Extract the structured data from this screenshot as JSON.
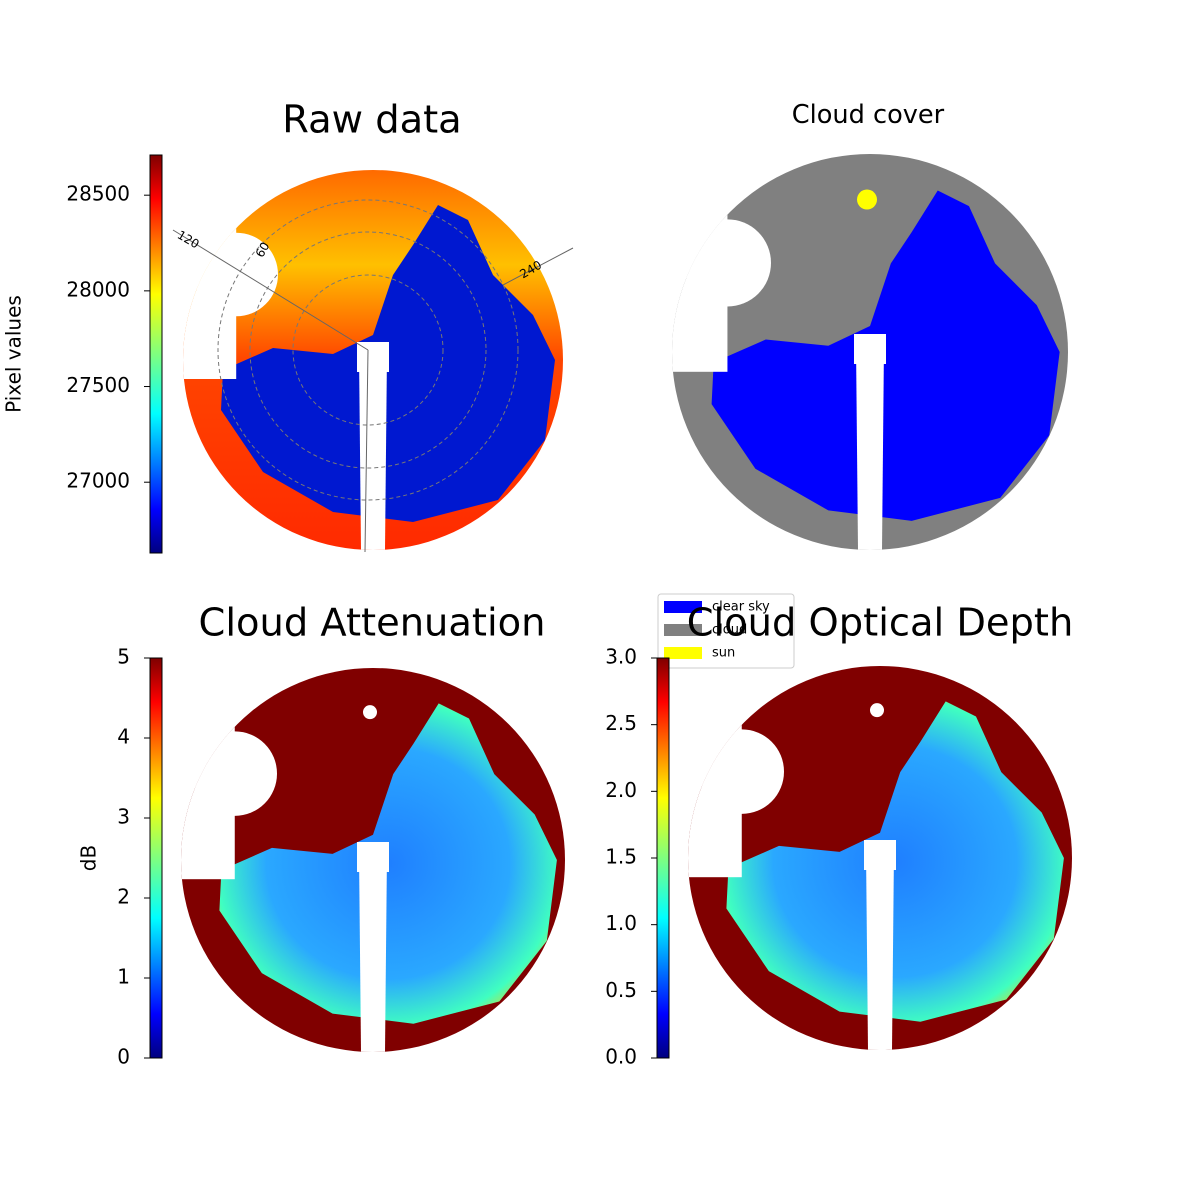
{
  "chart_data": [
    {
      "type": "image",
      "title": "Raw data",
      "colorbar": {
        "label": "Pixel values",
        "lim": [
          26630,
          28710
        ],
        "ticks": [
          27000,
          27500,
          28000,
          28500
        ]
      },
      "polar_labels": [
        "120",
        "60",
        "240"
      ]
    },
    {
      "type": "image",
      "title": "Cloud cover",
      "legend": [
        {
          "name": "clear sky",
          "color": "#0000ff"
        },
        {
          "name": "cloud",
          "color": "#808080"
        },
        {
          "name": "sun",
          "color": "#ffff00"
        }
      ]
    },
    {
      "type": "image",
      "title": "Cloud Attenuation",
      "colorbar": {
        "label": "dB",
        "lim": [
          0,
          5
        ],
        "ticks": [
          0,
          1,
          2,
          3,
          4,
          5
        ]
      }
    },
    {
      "type": "image",
      "title": "Cloud Optical Depth",
      "colorbar": {
        "lim": [
          0,
          3
        ],
        "ticks": [
          {
            "value": 0,
            "label": "0.0"
          },
          0.5,
          {
            "value": 1,
            "label": "1.0"
          },
          1.5,
          {
            "value": 2,
            "label": "2.0"
          },
          2.5,
          {
            "value": 3,
            "label": "3.0"
          }
        ]
      }
    }
  ]
}
